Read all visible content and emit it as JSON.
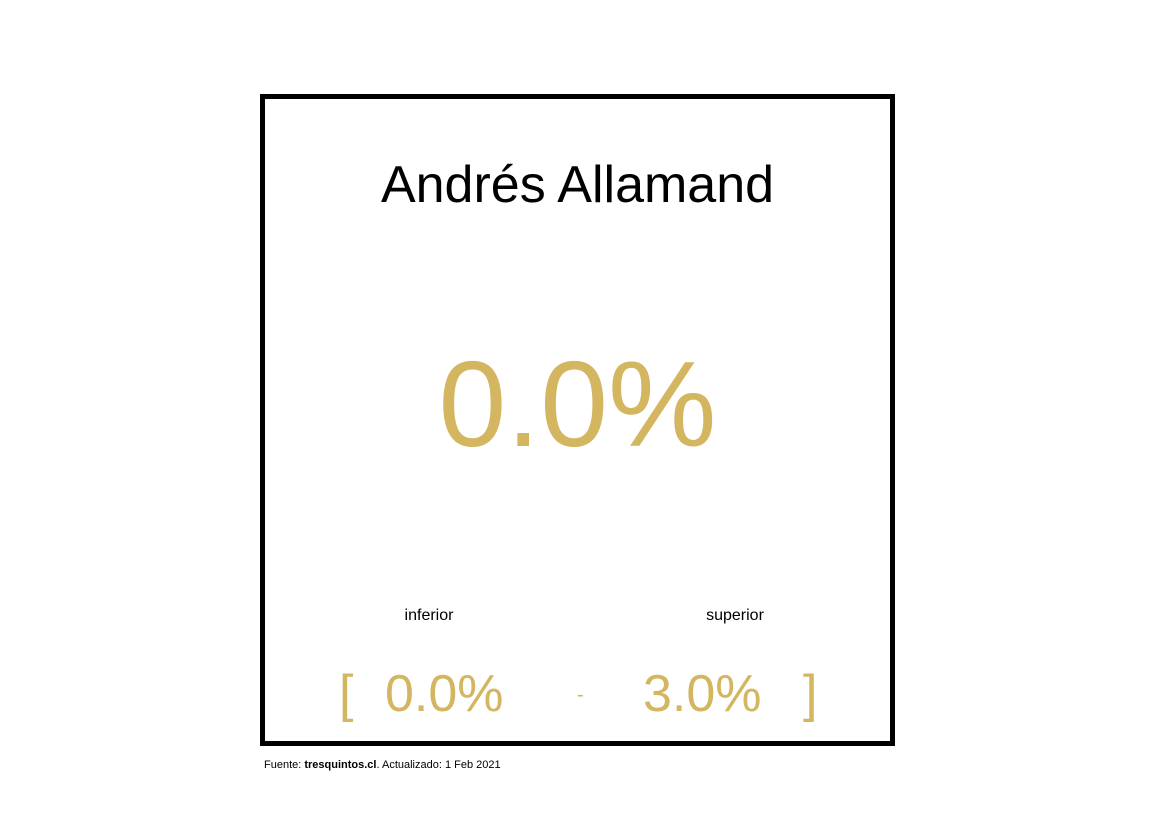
{
  "card": {
    "name": "Andrés Allamand",
    "value": "0.0%",
    "lower_label": "inferior",
    "upper_label": "superior",
    "range": {
      "open_bracket": "[",
      "lower": "0.0%",
      "separator": "-",
      "upper": "3.0%",
      "close_bracket": "]"
    }
  },
  "footer": {
    "source_prefix": "Fuente: ",
    "source_site": "tresquintos.cl",
    "source_suffix": ". Actualizado: 1 Feb 2021"
  },
  "colors": {
    "accent": "#d4b560",
    "border": "#000000"
  }
}
